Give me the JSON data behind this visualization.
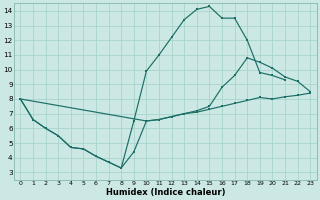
{
  "xlabel": "Humidex (Indice chaleur)",
  "bg_color": "#cce8e4",
  "grid_color": "#a8d4cc",
  "line_color": "#1a6e66",
  "xlim": [
    -0.5,
    23.5
  ],
  "ylim": [
    2.5,
    14.5
  ],
  "xticks": [
    0,
    1,
    2,
    3,
    4,
    5,
    6,
    7,
    8,
    9,
    10,
    11,
    12,
    13,
    14,
    15,
    16,
    17,
    18,
    19,
    20,
    21,
    22,
    23
  ],
  "yticks": [
    3,
    4,
    5,
    6,
    7,
    8,
    9,
    10,
    11,
    12,
    13,
    14
  ],
  "line1_x": [
    0,
    1,
    2,
    3,
    4,
    5,
    6,
    7,
    8,
    9,
    10,
    11,
    12,
    13,
    14,
    15,
    16,
    17,
    18,
    19,
    20,
    21,
    22,
    23
  ],
  "line1_y": [
    8.0,
    6.6,
    6.0,
    5.5,
    4.7,
    4.6,
    4.1,
    3.7,
    3.3,
    4.4,
    6.5,
    6.6,
    6.8,
    7.0,
    7.1,
    7.3,
    7.5,
    7.7,
    7.9,
    8.1,
    8.0,
    8.15,
    8.25,
    8.4
  ],
  "line2_x": [
    0,
    1,
    2,
    3,
    4,
    5,
    6,
    7,
    8,
    9,
    10,
    11,
    12,
    13,
    14,
    15,
    16,
    17,
    18,
    19,
    20,
    21
  ],
  "line2_y": [
    8.0,
    6.6,
    6.0,
    5.5,
    4.7,
    4.6,
    4.1,
    3.7,
    3.3,
    6.5,
    9.9,
    11.0,
    12.2,
    13.4,
    14.1,
    14.3,
    13.5,
    13.5,
    12.0,
    9.8,
    9.6,
    9.3
  ],
  "line3_x": [
    0,
    10,
    11,
    12,
    13,
    14,
    15,
    16,
    17,
    18,
    19,
    20,
    21,
    22,
    23
  ],
  "line3_y": [
    8.0,
    6.5,
    6.6,
    6.8,
    7.0,
    7.2,
    7.5,
    8.8,
    9.6,
    10.8,
    10.5,
    10.1,
    9.5,
    9.2,
    8.5
  ]
}
